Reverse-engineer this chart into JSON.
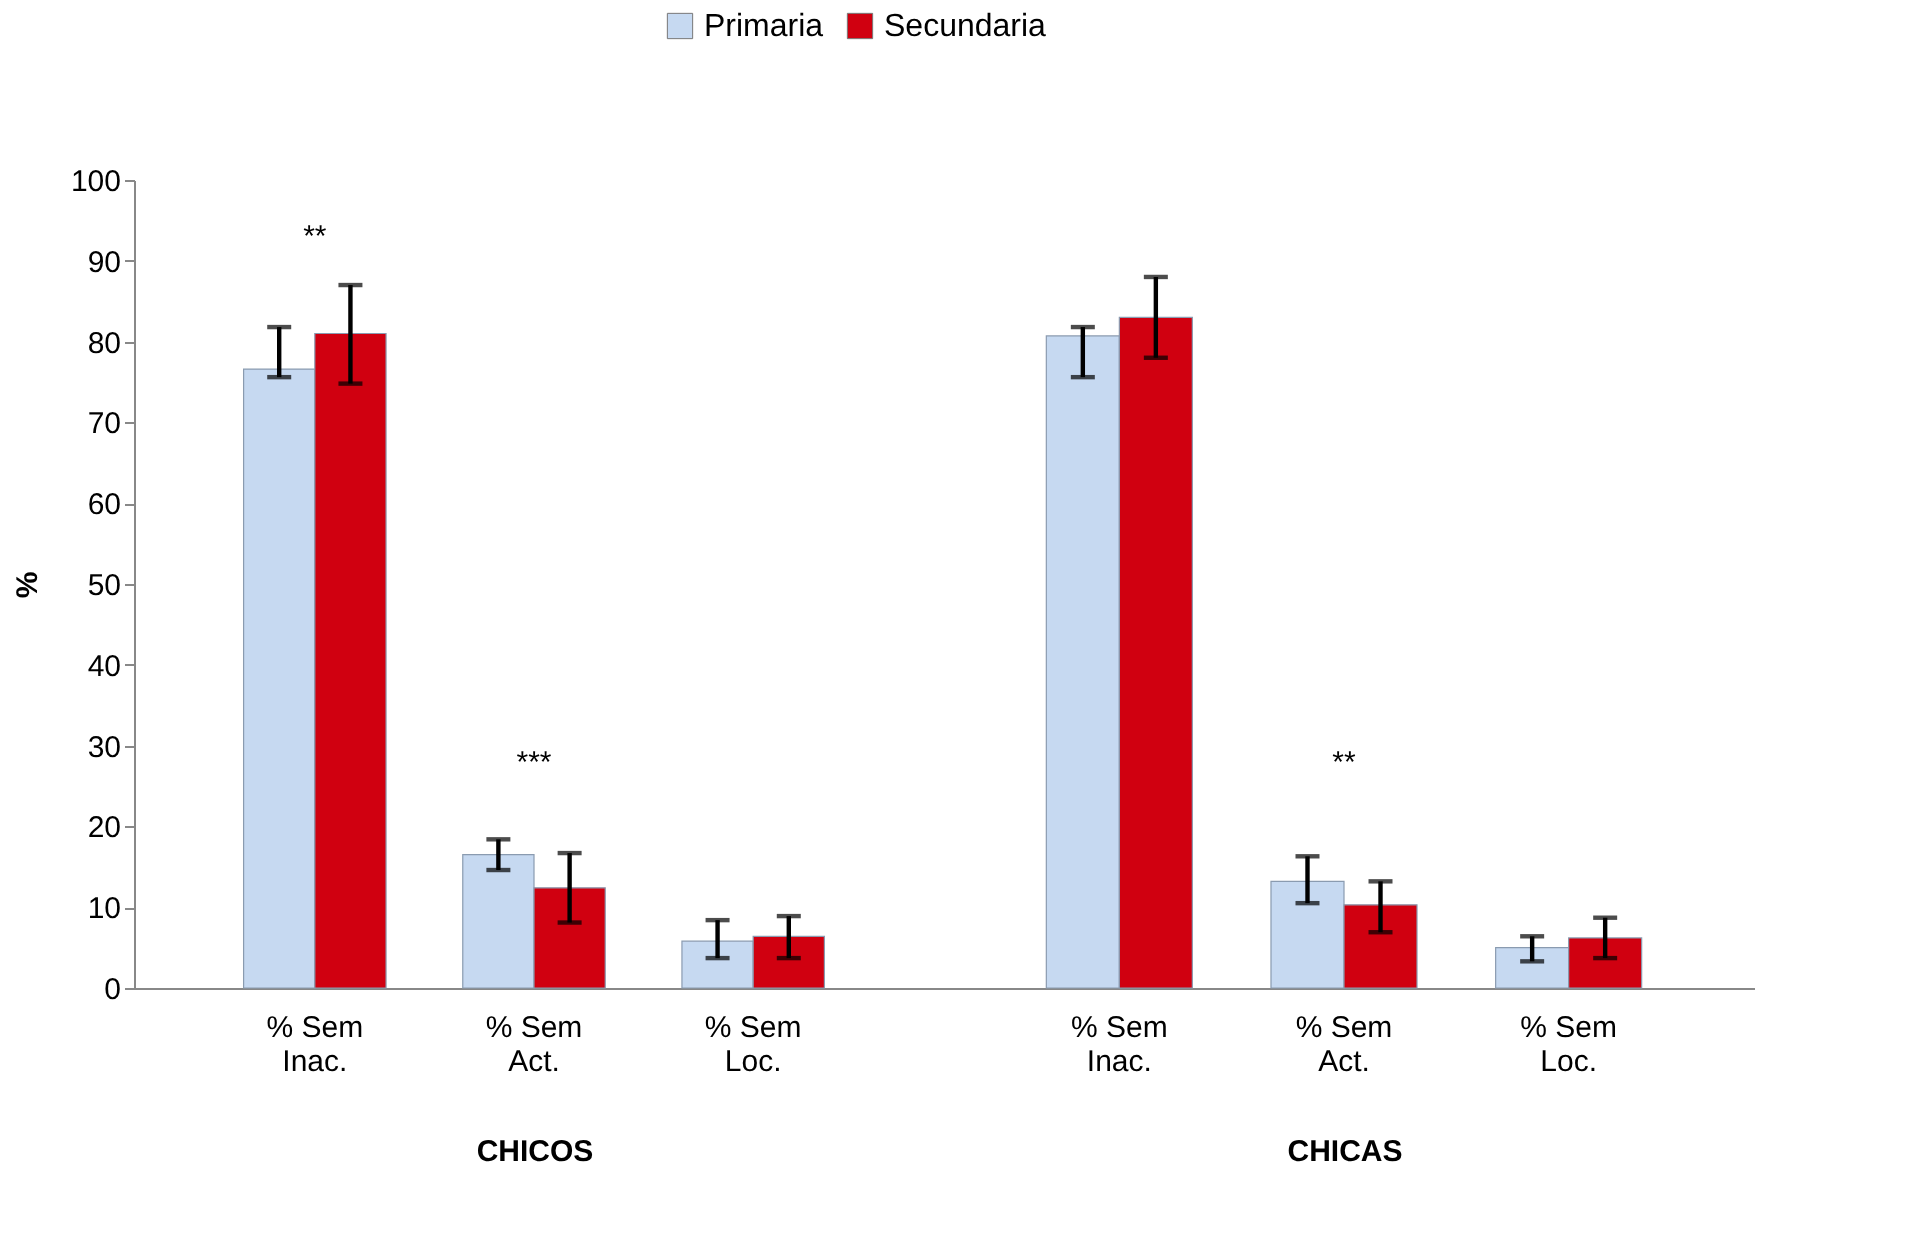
{
  "chart_data": [
    {
      "type": "bar",
      "xlabel": "CHICOS",
      "ylabel": "%",
      "categories": [
        "% Sem Inac.",
        "% Sem Act.",
        "% Sem Loc."
      ],
      "series": [
        {
          "name": "Primaria",
          "color": "#c6d9f1",
          "values": [
            76.6,
            16.5,
            5.8
          ],
          "errors": [
            [
              75.6,
              81.8
            ],
            [
              14.6,
              18.4
            ],
            [
              3.7,
              8.4
            ]
          ]
        },
        {
          "name": "Secundaria",
          "color": "#d00010",
          "values": [
            81,
            12.4,
            6.4
          ],
          "errors": [
            [
              74.8,
              87
            ],
            [
              8.1,
              16.7
            ],
            [
              3.7,
              8.9
            ]
          ]
        }
      ],
      "ylim": [
        0,
        100
      ],
      "yticks": [
        0,
        10,
        20,
        30,
        40,
        50,
        60,
        70,
        80,
        90,
        100
      ],
      "grid": false,
      "legend": "top",
      "annotations": [
        "**",
        "***"
      ]
    },
    {
      "type": "bar",
      "xlabel": "CHICAS",
      "categories": [
        "% Sem Inac.",
        "% Sem Act.",
        "% Sem Loc."
      ],
      "series": [
        {
          "name": "Primaria",
          "color": "#c6d9f1",
          "values": [
            80.7,
            13.2,
            5
          ],
          "errors": [
            [
              75.6,
              81.8
            ],
            [
              10.5,
              16.3
            ],
            [
              3.3,
              6.4
            ]
          ]
        },
        {
          "name": "Secundaria",
          "color": "#d00010",
          "values": [
            83,
            10.3,
            6.2
          ],
          "errors": [
            [
              78,
              88
            ],
            [
              6.9,
              13.2
            ],
            [
              3.7,
              8.7
            ]
          ]
        }
      ],
      "ylim": [
        0,
        100
      ],
      "yticks": [
        0,
        10,
        20,
        30,
        40,
        50,
        60,
        70,
        80,
        90,
        100
      ],
      "grid": false,
      "tick_labels": "x",
      "annotations": [
        "**"
      ]
    }
  ]
}
